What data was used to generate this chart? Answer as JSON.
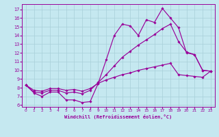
{
  "xlabel": "Windchill (Refroidissement éolien,°C)",
  "xlim": [
    -0.5,
    23.5
  ],
  "ylim": [
    5.8,
    17.6
  ],
  "xticks": [
    0,
    1,
    2,
    3,
    4,
    5,
    6,
    7,
    8,
    9,
    10,
    11,
    12,
    13,
    14,
    15,
    16,
    17,
    18,
    19,
    20,
    21,
    22,
    23
  ],
  "yticks": [
    6,
    7,
    8,
    9,
    10,
    11,
    12,
    13,
    14,
    15,
    16,
    17
  ],
  "bg_color": "#c5e8f0",
  "line_color": "#990099",
  "grid_color": "#a8cfd8",
  "lines": [
    {
      "x": [
        0,
        1,
        2,
        3,
        4,
        5,
        6,
        7,
        8,
        9,
        10,
        11,
        12,
        13,
        14,
        15,
        16,
        17,
        18,
        19,
        20,
        21,
        22,
        23
      ],
      "y": [
        8.3,
        7.4,
        7.0,
        7.5,
        7.5,
        6.6,
        6.6,
        6.3,
        6.4,
        8.5,
        11.2,
        14.0,
        15.3,
        15.1,
        14.0,
        15.8,
        15.5,
        17.1,
        16.0,
        14.9,
        12.0,
        11.8,
        10.0,
        9.9
      ]
    },
    {
      "x": [
        0,
        1,
        2,
        3,
        4,
        5,
        6,
        7,
        8,
        9,
        10,
        11,
        12,
        13,
        14,
        15,
        16,
        17,
        18,
        19,
        20,
        21,
        22,
        23
      ],
      "y": [
        8.3,
        7.5,
        7.4,
        7.7,
        7.7,
        7.4,
        7.5,
        7.3,
        7.7,
        8.6,
        9.5,
        10.5,
        11.5,
        12.2,
        12.9,
        13.5,
        14.1,
        14.8,
        15.3,
        13.3,
        12.1,
        11.8,
        10.0,
        9.9
      ]
    },
    {
      "x": [
        0,
        1,
        2,
        3,
        4,
        5,
        6,
        7,
        8,
        9,
        10,
        11,
        12,
        13,
        14,
        15,
        16,
        17,
        18,
        19,
        20,
        21,
        22,
        23
      ],
      "y": [
        8.3,
        7.7,
        7.6,
        7.9,
        7.9,
        7.7,
        7.8,
        7.6,
        7.9,
        8.5,
        8.9,
        9.2,
        9.5,
        9.7,
        10.0,
        10.2,
        10.4,
        10.6,
        10.8,
        9.5,
        9.4,
        9.3,
        9.2,
        9.9
      ]
    }
  ]
}
